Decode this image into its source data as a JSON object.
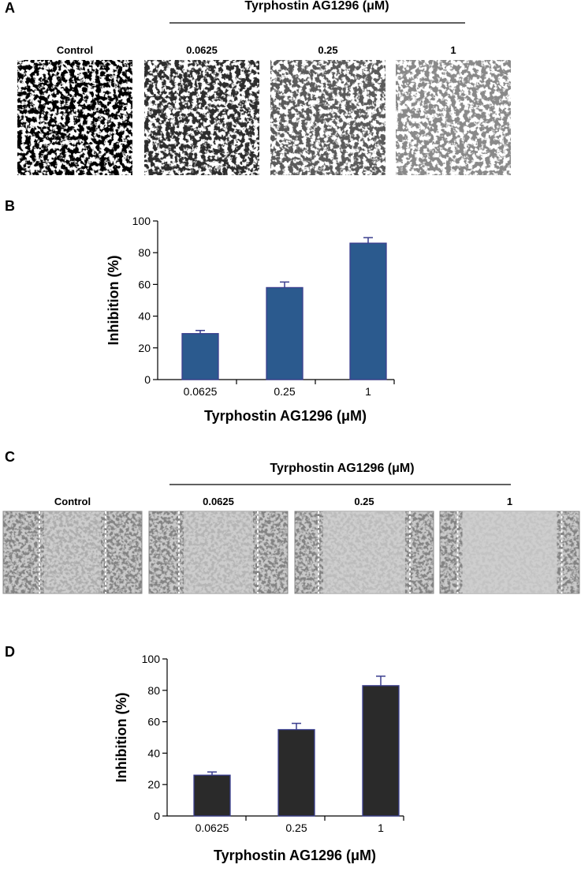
{
  "panels": [
    {
      "letter": "A",
      "heading": "Tyrphostin AG1296 (μM)",
      "images": [
        "Control",
        "0.0625",
        "0.25",
        "1"
      ]
    },
    {
      "letter": "C",
      "heading": "Tyrphostin AG1296 (μM)",
      "images": [
        "Control",
        "0.0625",
        "0.25",
        "1"
      ]
    }
  ],
  "chart_data": [
    {
      "type": "bar",
      "panel_label": "B",
      "x_label": "Tyrphostin AG1296 (μM)",
      "y_label": "Inhibition (%)",
      "categories": [
        "0.0625",
        "0.25",
        "1"
      ],
      "values": [
        29,
        58,
        86
      ],
      "errors": [
        2,
        3.5,
        3.5
      ],
      "color": "#2b5a8e",
      "edge_color": "#3b3f8f",
      "ylim": [
        0,
        100
      ],
      "yticks": [
        0,
        20,
        40,
        60,
        80,
        100
      ]
    },
    {
      "type": "bar",
      "panel_label": "D",
      "x_label": "Tyrphostin AG1296 (μM)",
      "y_label": "Inhibition (%)",
      "categories": [
        "0.0625",
        "0.25",
        "1"
      ],
      "values": [
        26,
        55,
        83
      ],
      "errors": [
        2,
        4,
        6
      ],
      "color": "#2a2a2a",
      "edge_color": "#3b3f8f",
      "ylim": [
        0,
        100
      ],
      "yticks": [
        0,
        20,
        40,
        60,
        80,
        100
      ]
    }
  ]
}
